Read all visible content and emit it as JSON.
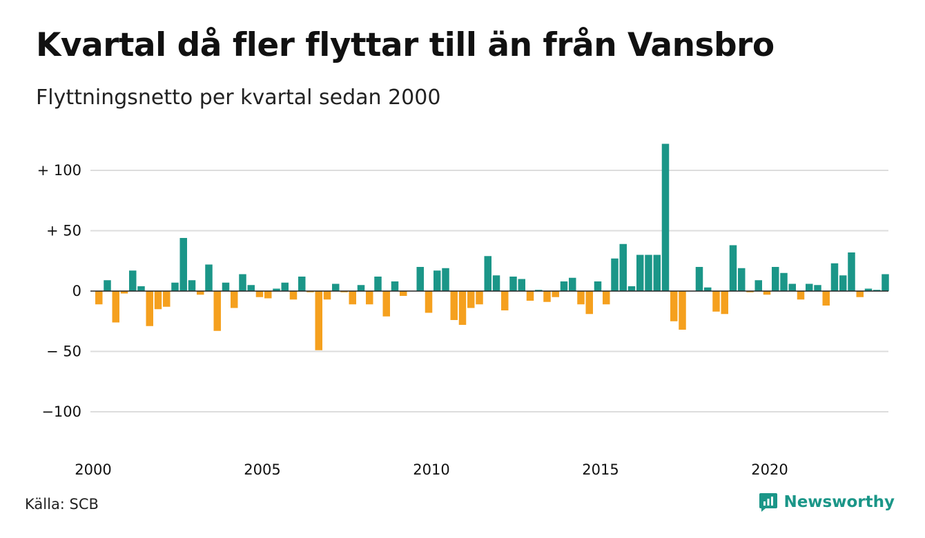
{
  "title": "Kvartal då fler flyttar till än från Vansbro",
  "subtitle": "Flyttningsnetto per kvartal sedan 2000",
  "source": "Källa: SCB",
  "brand": "Newsworthy",
  "colors": {
    "positive": "#1b9688",
    "negative": "#f5a01e",
    "grid": "#dddddd",
    "zero": "#222222"
  },
  "chart_data": {
    "type": "bar",
    "title": "Kvartal då fler flyttar till än från Vansbro",
    "subtitle": "Flyttningsnetto per kvartal sedan 2000",
    "xlabel": "",
    "ylabel": "",
    "start_year": 2000,
    "periods_per_year": 4,
    "ylim": [
      -125,
      125
    ],
    "yticks": [
      {
        "value": 100,
        "label": "+ 100"
      },
      {
        "value": 50,
        "label": "+  50"
      },
      {
        "value": 0,
        "label": "0"
      },
      {
        "value": -50,
        "label": "− 50"
      },
      {
        "value": -100,
        "label": "−100"
      }
    ],
    "xticks": [
      {
        "year": 2000,
        "label": "2000"
      },
      {
        "year": 2005,
        "label": "2005"
      },
      {
        "year": 2010,
        "label": "2010"
      },
      {
        "year": 2015,
        "label": "2015"
      },
      {
        "year": 2020,
        "label": "2020"
      }
    ],
    "grid": true,
    "values": [
      -11,
      9,
      -26,
      -2,
      17,
      4,
      -29,
      -15,
      -13,
      7,
      44,
      9,
      -3,
      22,
      -33,
      7,
      -14,
      14,
      5,
      -5,
      -6,
      2,
      7,
      -7,
      12,
      -1,
      -49,
      -7,
      6,
      -1,
      -11,
      5,
      -11,
      12,
      -21,
      8,
      -4,
      0,
      20,
      -18,
      17,
      19,
      -24,
      -28,
      -14,
      -11,
      29,
      13,
      -16,
      12,
      10,
      -8,
      1,
      -9,
      -5,
      8,
      11,
      -11,
      -19,
      8,
      -11,
      27,
      39,
      4,
      30,
      30,
      30,
      122,
      -25,
      -32,
      0,
      20,
      3,
      -17,
      -19,
      38,
      19,
      -1,
      9,
      -3,
      20,
      15,
      6,
      -7,
      6,
      5,
      -12,
      23,
      13,
      32,
      -5,
      2,
      1,
      14
    ]
  }
}
